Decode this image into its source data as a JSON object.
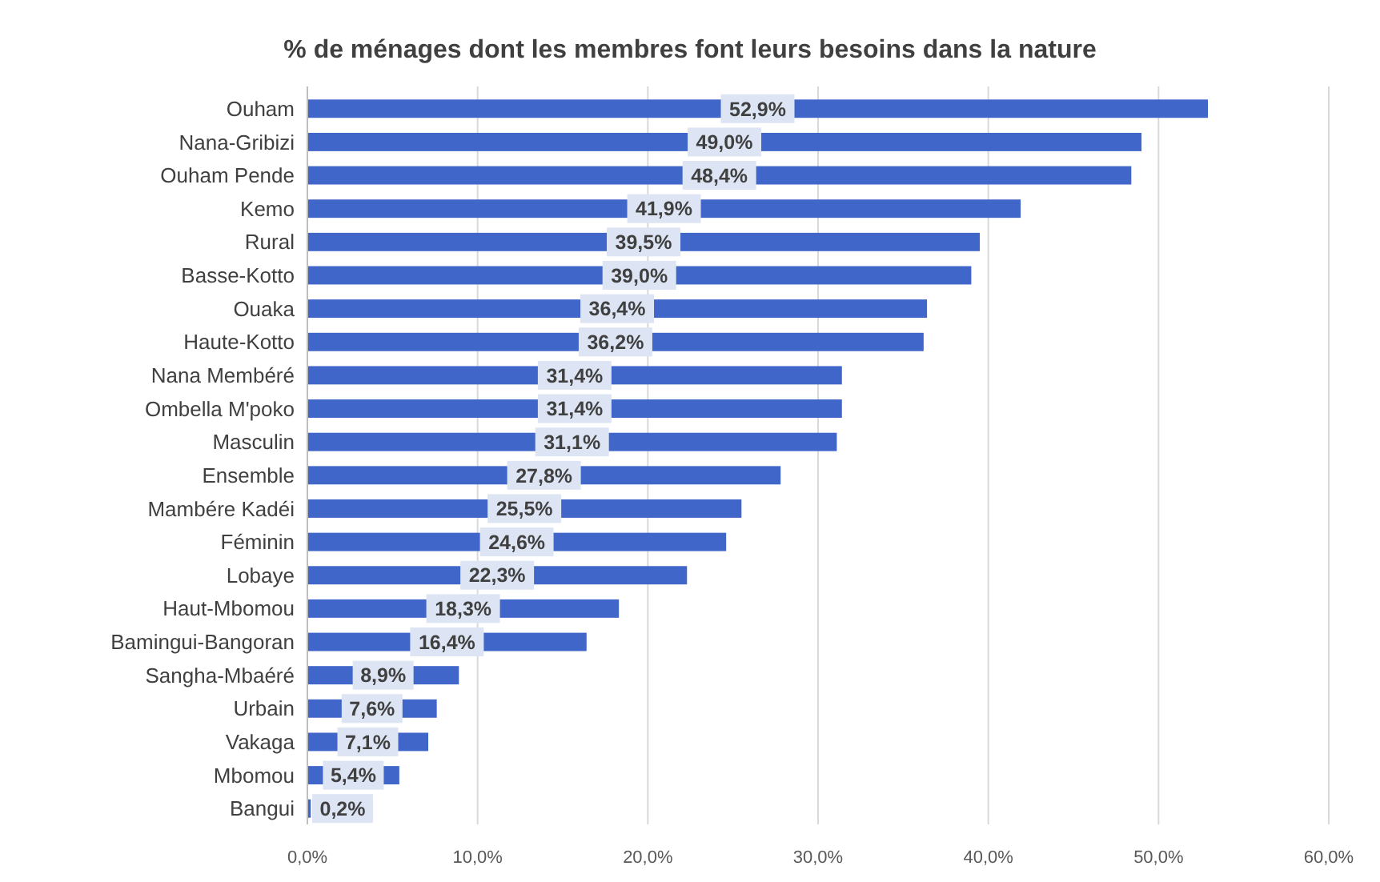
{
  "chart_data": {
    "type": "bar",
    "orientation": "horizontal",
    "title": "% de ménages dont les membres font leurs besoins dans la nature",
    "categories": [
      "Ouham",
      "Nana-Gribizi",
      "Ouham Pende",
      "Kemo",
      "Rural",
      "Basse-Kotto",
      "Ouaka",
      "Haute-Kotto",
      "Nana Membéré",
      "Ombella M'poko",
      "Masculin",
      "Ensemble",
      "Mambére Kadéi",
      "Féminin",
      "Lobaye",
      "Haut-Mbomou",
      "Bamingui-Bangoran",
      "Sangha-Mbaéré",
      "Urbain",
      "Vakaga",
      "Mbomou",
      "Bangui"
    ],
    "values": [
      52.9,
      49.0,
      48.4,
      41.9,
      39.5,
      39.0,
      36.4,
      36.2,
      31.4,
      31.4,
      31.1,
      27.8,
      25.5,
      24.6,
      22.3,
      18.3,
      16.4,
      8.9,
      7.6,
      7.1,
      5.4,
      0.2
    ],
    "value_labels": [
      "52,9%",
      "49,0%",
      "48,4%",
      "41,9%",
      "39,5%",
      "39,0%",
      "36,4%",
      "36,2%",
      "31,4%",
      "31,4%",
      "31,1%",
      "27,8%",
      "25,5%",
      "24,6%",
      "22,3%",
      "18,3%",
      "16,4%",
      "8,9%",
      "7,6%",
      "7,1%",
      "5,4%",
      "0,2%"
    ],
    "color": "#3f66c8",
    "xlim": [
      0,
      60
    ],
    "xticks": [
      {
        "value": 0,
        "label": "0,0%"
      },
      {
        "value": 10,
        "label": "10,0%"
      },
      {
        "value": 20,
        "label": "20,0%"
      },
      {
        "value": 30,
        "label": "30,0%"
      },
      {
        "value": 40,
        "label": "40,0%"
      },
      {
        "value": 50,
        "label": "50,0%"
      },
      {
        "value": 60,
        "label": "60,0%"
      }
    ],
    "grid": "x"
  }
}
